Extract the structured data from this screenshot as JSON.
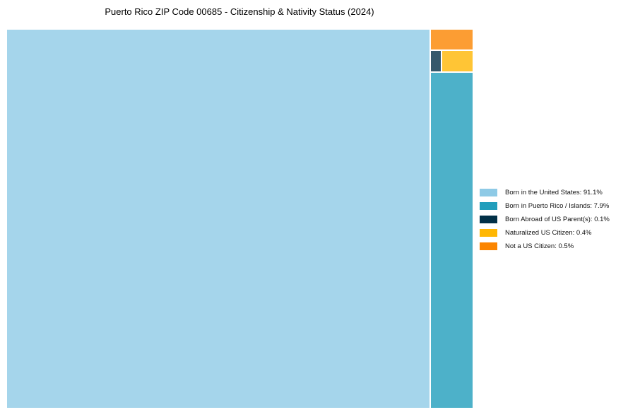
{
  "title": "Puerto Rico ZIP Code 00685 - Citizenship & Nativity Status (2024)",
  "chart_data": {
    "type": "treemap",
    "title": "Puerto Rico ZIP Code 00685 - Citizenship & Nativity Status (2024)",
    "unit": "%",
    "total": 100,
    "legend_position": "right",
    "tile_opacity": 0.8,
    "categories": [
      "Born in the United States",
      "Born in Puerto Rico / Islands",
      "Born Abroad of US Parent(s)",
      "Naturalized US Citizen",
      "Not a US Citizen"
    ],
    "values": [
      91.1,
      7.9,
      0.1,
      0.4,
      0.5
    ],
    "items": [
      {
        "label": "Born in the United States",
        "value": 91.1,
        "color": "#8ECAE6"
      },
      {
        "label": "Born in Puerto Rico / Islands",
        "value": 7.9,
        "color": "#219EBC"
      },
      {
        "label": "Born Abroad of US Parent(s)",
        "value": 0.1,
        "color": "#023047"
      },
      {
        "label": "Naturalized US Citizen",
        "value": 0.4,
        "color": "#FFB703"
      },
      {
        "label": "Not a US Citizen",
        "value": 0.5,
        "color": "#FB8500"
      }
    ]
  },
  "legend": {
    "items": [
      {
        "text": "Born in the United States: 91.1%",
        "color": "#8ECAE6"
      },
      {
        "text": "Born in Puerto Rico / Islands: 7.9%",
        "color": "#219EBC"
      },
      {
        "text": "Born Abroad of US Parent(s): 0.1%",
        "color": "#023047"
      },
      {
        "text": "Naturalized US Citizen: 0.4%",
        "color": "#FFB703"
      },
      {
        "text": "Not a US Citizen: 0.5%",
        "color": "#FB8500"
      }
    ]
  }
}
